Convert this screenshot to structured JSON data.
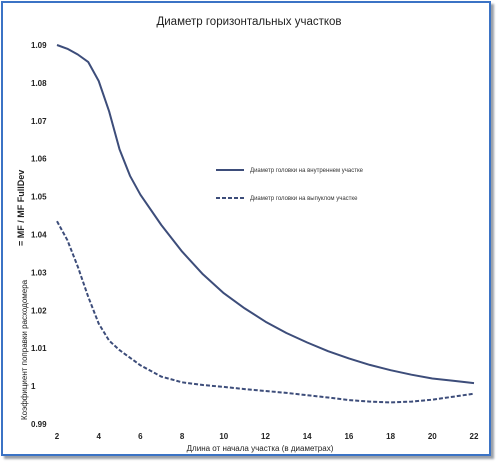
{
  "chart_data": {
    "type": "line",
    "title": "Диаметр горизонтальных участков",
    "xlabel": "Длина от начала участка (в диаметрах)",
    "ylabel_main": "= MF / MF FullDev",
    "ylabel_secondary": "Коэффициент поправки расходомера",
    "xlim": [
      2,
      22
    ],
    "ylim": [
      0.99,
      1.09
    ],
    "x_ticks": [
      2,
      4,
      6,
      8,
      10,
      12,
      14,
      16,
      18,
      20,
      22
    ],
    "y_ticks": [
      0.99,
      1,
      1.01,
      1.02,
      1.03,
      1.04,
      1.05,
      1.06,
      1.07,
      1.08,
      1.09
    ],
    "y_tick_labels": [
      "0.99",
      "1",
      "1.01",
      "1.02",
      "1.03",
      "1.04",
      "1.05",
      "1.06",
      "1.07",
      "1.08",
      "1.09"
    ],
    "grid": false,
    "legend_position": "center-right",
    "series": [
      {
        "name": "Диаметр головки на внутреннем участке",
        "style": "solid",
        "color": "#3d4d7a",
        "x": [
          2,
          2.5,
          3,
          3.5,
          4,
          4.5,
          5,
          5.5,
          6,
          7,
          8,
          9,
          10,
          11,
          12,
          13,
          14,
          15,
          16,
          17,
          18,
          19,
          20,
          21,
          22
        ],
        "y": [
          1.09,
          1.089,
          1.0875,
          1.0855,
          1.0805,
          1.0725,
          1.0625,
          1.0555,
          1.0505,
          1.0425,
          1.0355,
          1.0295,
          1.0245,
          1.0205,
          1.017,
          1.014,
          1.0115,
          1.0092,
          1.0073,
          1.0056,
          1.0042,
          1.003,
          1.002,
          1.0014,
          1.0008
        ]
      },
      {
        "name": "Диаметр головки на выпуклом участке",
        "style": "dashed",
        "color": "#3d4d7a",
        "x": [
          2,
          2.5,
          3,
          3.5,
          4,
          4.5,
          5,
          6,
          7,
          8,
          9,
          10,
          11,
          12,
          13,
          14,
          15,
          16,
          17,
          18,
          19,
          20,
          21,
          22
        ],
        "y": [
          1.0435,
          1.0385,
          1.0315,
          1.0235,
          1.0165,
          1.012,
          1.0095,
          1.0055,
          1.0025,
          1.001,
          1.0003,
          0.9998,
          0.9992,
          0.9987,
          0.9982,
          0.9976,
          0.997,
          0.9963,
          0.9959,
          0.9957,
          0.9959,
          0.9964,
          0.9972,
          0.998
        ]
      }
    ]
  }
}
